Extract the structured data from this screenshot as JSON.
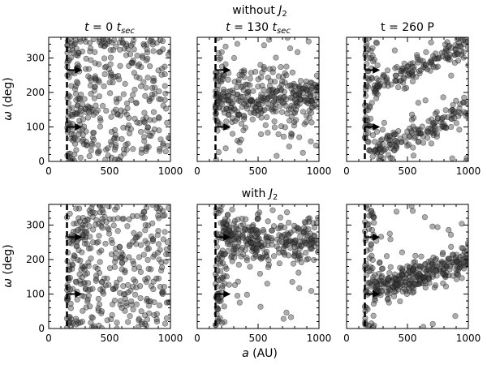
{
  "figure": {
    "row_titles": [
      "without J2",
      "with J2"
    ],
    "xlabel": "a (AU)",
    "ylabel": "ω (deg)"
  },
  "chart_data": [
    {
      "type": "scatter",
      "row": "without J2",
      "title": "t = 0 t_sec",
      "xlim": [
        0,
        1000
      ],
      "ylim": [
        0,
        360
      ],
      "x_ticks": [
        0,
        500,
        1000
      ],
      "y_ticks": [
        0,
        100,
        200,
        300
      ],
      "vline_x": 150,
      "arrows": [
        {
          "x_start": 150,
          "x_end": 275,
          "y": 265
        },
        {
          "x_start": 150,
          "x_end": 275,
          "y": 100
        }
      ],
      "distribution": "uniform in omega for a ≥ 150",
      "points": []
    },
    {
      "type": "scatter",
      "row": "without J2",
      "title": "t = 130 t_sec",
      "xlim": [
        0,
        1000
      ],
      "ylim": [
        0,
        360
      ],
      "x_ticks": [
        0,
        500,
        1000
      ],
      "y_ticks": [
        0,
        100,
        200,
        300
      ],
      "vline_x": 150,
      "arrows": [
        {
          "x_start": 150,
          "x_end": 275,
          "y": 265
        },
        {
          "x_start": 150,
          "x_end": 275,
          "y": 100
        }
      ],
      "distribution": "clustered near omega ≈ 185",
      "points": []
    },
    {
      "type": "scatter",
      "row": "without J2",
      "title": "t = 260 P",
      "xlim": [
        0,
        1000
      ],
      "ylim": [
        0,
        360
      ],
      "x_ticks": [
        0,
        500,
        1000
      ],
      "y_ticks": [
        0,
        100,
        200,
        300
      ],
      "vline_x": 150,
      "arrows": [
        {
          "x_start": 150,
          "x_end": 275,
          "y": 265
        },
        {
          "x_start": 150,
          "x_end": 275,
          "y": 100
        }
      ],
      "distribution": "two diverging branches",
      "points": []
    },
    {
      "type": "scatter",
      "row": "with J2",
      "title": "",
      "xlim": [
        0,
        1000
      ],
      "ylim": [
        0,
        360
      ],
      "x_ticks": [
        0,
        500,
        1000
      ],
      "y_ticks": [
        0,
        100,
        200,
        300
      ],
      "vline_x": 150,
      "arrows": [
        {
          "x_start": 150,
          "x_end": 275,
          "y": 265
        },
        {
          "x_start": 150,
          "x_end": 275,
          "y": 100
        }
      ],
      "distribution": "uniform in omega for a ≥ 150",
      "points": []
    },
    {
      "type": "scatter",
      "row": "with J2",
      "title": "",
      "xlim": [
        0,
        1000
      ],
      "ylim": [
        0,
        360
      ],
      "x_ticks": [
        0,
        500,
        1000
      ],
      "y_ticks": [
        0,
        100,
        200,
        300
      ],
      "vline_x": 150,
      "arrows": [
        {
          "x_start": 150,
          "x_end": 275,
          "y": 265
        },
        {
          "x_start": 150,
          "x_end": 275,
          "y": 100
        }
      ],
      "distribution": "clustered near omega ≈ 255",
      "points": []
    },
    {
      "type": "scatter",
      "row": "with J2",
      "title": "",
      "xlim": [
        0,
        1000
      ],
      "ylim": [
        0,
        360
      ],
      "x_ticks": [
        0,
        500,
        1000
      ],
      "y_ticks": [
        0,
        100,
        200,
        300
      ],
      "vline_x": 150,
      "arrows": [
        {
          "x_start": 150,
          "x_end": 275,
          "y": 265
        },
        {
          "x_start": 150,
          "x_end": 275,
          "y": 100
        }
      ],
      "distribution": "rising band from ≈100 to ≈200",
      "points": []
    }
  ]
}
